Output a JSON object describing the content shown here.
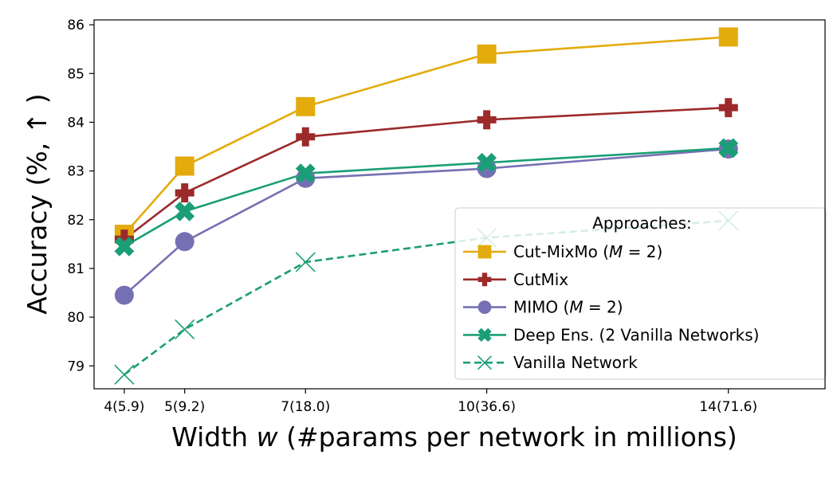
{
  "chart_data": {
    "type": "line",
    "title": "",
    "xlabel": "Width w (#params per network in millions)",
    "ylabel": "Accuracy (%, ↑ )",
    "x": [
      4,
      5,
      7,
      10,
      14
    ],
    "x_tick_labels": [
      "4(5.9)",
      "5(9.2)",
      "7(18.0)",
      "10(36.6)",
      "14(71.6)"
    ],
    "xlim": [
      3.5,
      15.6
    ],
    "ylim": [
      78.53,
      86.1
    ],
    "y_ticks": [
      79,
      80,
      81,
      82,
      83,
      84,
      85,
      86
    ],
    "legend": {
      "title": "Approaches:",
      "position": "lower-right"
    },
    "series": [
      {
        "name": "Cut-MixMo (M = 2)",
        "display": [
          "Cut-MixMo (",
          "M",
          " = 2)"
        ],
        "color": "#e3ab0c",
        "marker": "square",
        "style": "solid",
        "values": [
          81.7,
          83.1,
          84.32,
          85.4,
          85.75
        ]
      },
      {
        "name": "CutMix",
        "display": [
          "CutMix",
          "",
          ""
        ],
        "color": "#9c2a2a",
        "marker": "plus",
        "style": "solid",
        "values": [
          81.6,
          82.55,
          83.7,
          84.05,
          84.3
        ]
      },
      {
        "name": "MIMO (M = 2)",
        "display": [
          "MIMO (",
          "M",
          " = 2)"
        ],
        "color": "#7570b3",
        "marker": "circle",
        "style": "solid",
        "values": [
          80.45,
          81.55,
          82.85,
          83.05,
          83.45
        ]
      },
      {
        "name": "Deep Ens. (2 Vanilla Networks)",
        "display": [
          "Deep Ens. (2 Vanilla Networks)",
          "",
          ""
        ],
        "color": "#1b9e77",
        "marker": "x-filled",
        "style": "solid",
        "values": [
          81.45,
          82.17,
          82.95,
          83.17,
          83.47
        ]
      },
      {
        "name": "Vanilla Network",
        "display": [
          "Vanilla Network",
          "",
          ""
        ],
        "color": "#1b9e77",
        "marker": "x",
        "style": "dashed",
        "values": [
          78.82,
          79.75,
          81.13,
          81.63,
          81.98
        ]
      }
    ]
  }
}
